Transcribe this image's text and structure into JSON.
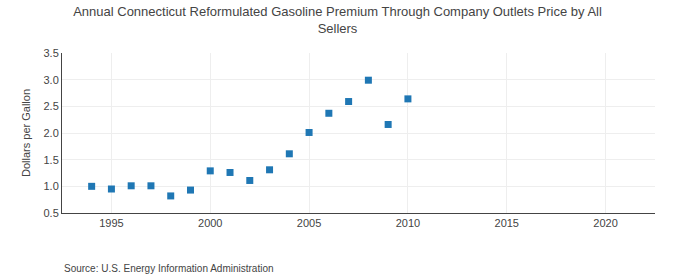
{
  "chart_data": {
    "type": "scatter",
    "title": "Annual Connecticut Reformulated Gasoline Premium Through Company Outlets Price by All\nSellers",
    "ylabel": "Dollars per Gallon",
    "annotations": [
      "Source: U.S. Energy Information Administration"
    ],
    "x": [
      1994,
      1995,
      1996,
      1997,
      1998,
      1999,
      2000,
      2001,
      2002,
      2003,
      2004,
      2005,
      2006,
      2007,
      2008,
      2009,
      2010
    ],
    "values": [
      1.0,
      0.95,
      1.01,
      1.01,
      0.82,
      0.93,
      1.29,
      1.26,
      1.11,
      1.31,
      1.61,
      2.01,
      2.37,
      2.59,
      2.99,
      2.16,
      2.64
    ],
    "marker": "square",
    "xlim": [
      1992.5,
      2022.5
    ],
    "ylim": [
      0.5,
      3.5
    ],
    "xticks": [
      1995,
      2000,
      2005,
      2010,
      2015,
      2020
    ],
    "yticks": [
      0.5,
      {
        "value": 1,
        "label": "1.0"
      },
      1.5,
      {
        "value": 2,
        "label": "2.0"
      },
      2.5,
      {
        "value": 3,
        "label": "3.0"
      },
      3.5
    ],
    "grid": true
  }
}
